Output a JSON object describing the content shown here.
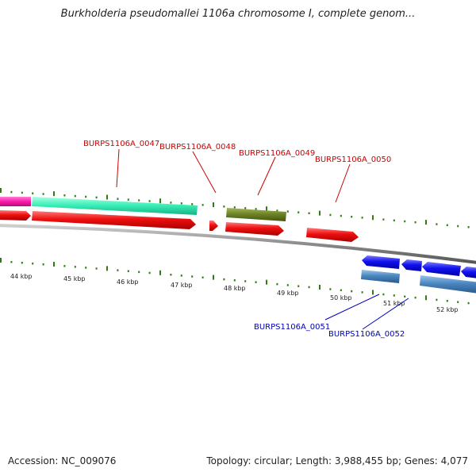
{
  "title": "Burkholderia pseudomallei 1106a chromosome I, complete genom...",
  "accession": "Accession: NC_009076",
  "summary": "Topology: circular; Length: 3,988,455 bp; Genes: 4,077",
  "colors": {
    "backbone": "#8a8a8a",
    "tick": "#2e7d14",
    "forward_label": "#cc0000",
    "reverse_label": "#0000bb"
  },
  "scale_labels": [
    "44 kbp",
    "45 kbp",
    "46 kbp",
    "47 kbp",
    "48 kbp",
    "49 kbp",
    "50 kbp",
    "51 kbp",
    "52 kbp"
  ],
  "gene_labels": [
    {
      "text": "BURPS1106A_0047",
      "strand": "forward"
    },
    {
      "text": "BURPS1106A_0048",
      "strand": "forward"
    },
    {
      "text": "BURPS1106A_0049",
      "strand": "forward"
    },
    {
      "text": "BURPS1106A_0050",
      "strand": "forward"
    },
    {
      "text": "BURPS1106A_0051",
      "strand": "reverse"
    },
    {
      "text": "BURPS1106A_0052",
      "strand": "reverse"
    }
  ]
}
